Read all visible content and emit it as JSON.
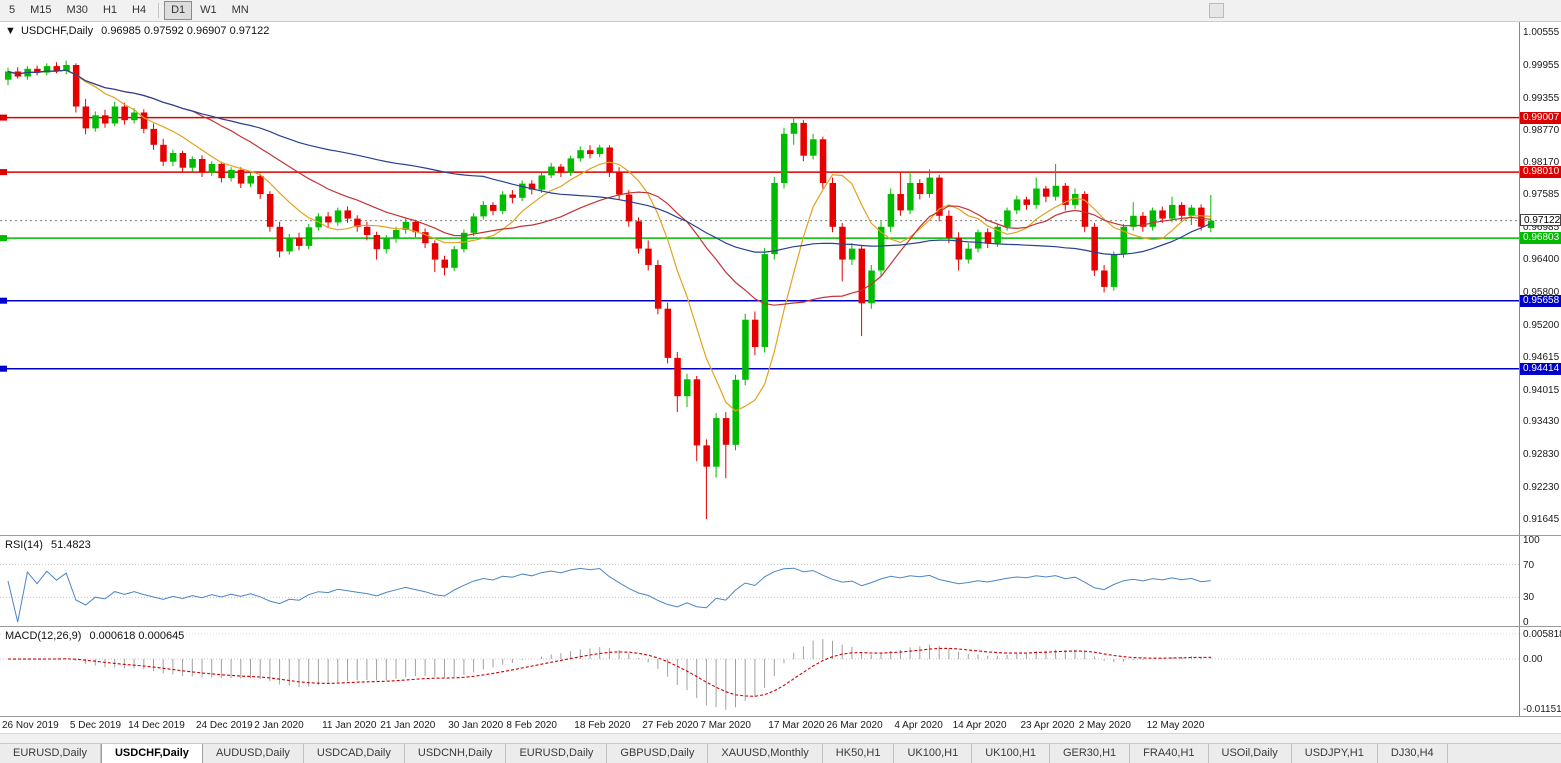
{
  "toolbar": {
    "timeframes": [
      "5",
      "M15",
      "M30",
      "H1",
      "H4",
      "|",
      "D1",
      "W1",
      "MN"
    ],
    "active": "D1"
  },
  "chart": {
    "collapse_icon": "▼",
    "title": "USDCHF,Daily",
    "ohlc_text": "0.96985 0.97592 0.96907 0.97122"
  },
  "chart_data": {
    "type": "candlestick",
    "symbol": "USDCHF",
    "timeframe": "Daily",
    "up_color": "#00bb00",
    "down_color": "#e60000",
    "price_axis": {
      "top_price": 1.00555,
      "bottom_price": 0.91645,
      "ticks": [
        1.00555,
        0.99955,
        0.99355,
        0.9877,
        0.9817,
        0.97585,
        0.96985,
        0.964,
        0.958,
        0.952,
        0.94615,
        0.94015,
        0.9343,
        0.9283,
        0.9223,
        0.91645
      ]
    },
    "hlines": [
      {
        "price": 0.99007,
        "label": "0.99007",
        "color": "#dd0000"
      },
      {
        "price": 0.9801,
        "label": "0.98010",
        "color": "#dd0000"
      },
      {
        "price": 0.96803,
        "label": "0.96803",
        "color": "#00bb00"
      },
      {
        "price": 0.95658,
        "label": "0.95658",
        "color": "#0000cc"
      },
      {
        "price": 0.94414,
        "label": "0.94414",
        "color": "#0000cc"
      }
    ],
    "current_price": {
      "price": 0.97122,
      "label": "0.97122"
    },
    "moving_averages": [
      {
        "period": 8,
        "color": "#e0a320"
      },
      {
        "period": 20,
        "color": "#c23434"
      },
      {
        "period": 50,
        "color": "#29418f"
      }
    ],
    "ohlc": [
      [
        0.997,
        0.9992,
        0.996,
        0.9985
      ],
      [
        0.9985,
        0.9993,
        0.9972,
        0.9976
      ],
      [
        0.9976,
        0.9995,
        0.997,
        0.999
      ],
      [
        0.999,
        0.9996,
        0.9978,
        0.9983
      ],
      [
        0.9983,
        1.0,
        0.9978,
        0.9995
      ],
      [
        0.9995,
        1.0002,
        0.9982,
        0.9986
      ],
      [
        0.9986,
        1.0005,
        0.998,
        0.9997
      ],
      [
        0.9997,
        1.0,
        0.991,
        0.9921
      ],
      [
        0.9921,
        0.9935,
        0.987,
        0.9881
      ],
      [
        0.9881,
        0.9912,
        0.9875,
        0.9905
      ],
      [
        0.9905,
        0.9915,
        0.9882,
        0.989
      ],
      [
        0.989,
        0.993,
        0.9885,
        0.9921
      ],
      [
        0.9921,
        0.9928,
        0.9888,
        0.9896
      ],
      [
        0.9896,
        0.9918,
        0.989,
        0.991
      ],
      [
        0.991,
        0.9916,
        0.9872,
        0.988
      ],
      [
        0.988,
        0.989,
        0.9842,
        0.9851
      ],
      [
        0.9851,
        0.9862,
        0.9812,
        0.982
      ],
      [
        0.982,
        0.9842,
        0.9812,
        0.9836
      ],
      [
        0.9836,
        0.984,
        0.98,
        0.9809
      ],
      [
        0.9809,
        0.983,
        0.9802,
        0.9825
      ],
      [
        0.9825,
        0.9832,
        0.9792,
        0.98
      ],
      [
        0.98,
        0.9821,
        0.9794,
        0.9816
      ],
      [
        0.9816,
        0.982,
        0.9782,
        0.979
      ],
      [
        0.979,
        0.981,
        0.9784,
        0.9805
      ],
      [
        0.9805,
        0.981,
        0.9772,
        0.978
      ],
      [
        0.978,
        0.98,
        0.9774,
        0.9794
      ],
      [
        0.9794,
        0.9798,
        0.9752,
        0.9761
      ],
      [
        0.9761,
        0.9766,
        0.9692,
        0.9701
      ],
      [
        0.9701,
        0.971,
        0.9645,
        0.9656
      ],
      [
        0.9656,
        0.9688,
        0.965,
        0.9681
      ],
      [
        0.9681,
        0.969,
        0.9658,
        0.9666
      ],
      [
        0.9666,
        0.9706,
        0.966,
        0.97
      ],
      [
        0.97,
        0.9726,
        0.9694,
        0.972
      ],
      [
        0.972,
        0.9728,
        0.97,
        0.9709
      ],
      [
        0.9709,
        0.9736,
        0.9703,
        0.9731
      ],
      [
        0.9731,
        0.9738,
        0.9708,
        0.9716
      ],
      [
        0.9716,
        0.9722,
        0.9692,
        0.9701
      ],
      [
        0.9701,
        0.971,
        0.9676,
        0.9686
      ],
      [
        0.9686,
        0.9692,
        0.9641,
        0.966
      ],
      [
        0.966,
        0.9686,
        0.9652,
        0.968
      ],
      [
        0.968,
        0.9701,
        0.9672,
        0.9695
      ],
      [
        0.9695,
        0.9716,
        0.9688,
        0.971
      ],
      [
        0.971,
        0.9714,
        0.9682,
        0.9691
      ],
      [
        0.9691,
        0.9698,
        0.9662,
        0.9671
      ],
      [
        0.9671,
        0.9676,
        0.9618,
        0.9641
      ],
      [
        0.9641,
        0.9648,
        0.9612,
        0.9626
      ],
      [
        0.9626,
        0.9666,
        0.962,
        0.966
      ],
      [
        0.966,
        0.9696,
        0.9654,
        0.969
      ],
      [
        0.969,
        0.9726,
        0.9684,
        0.972
      ],
      [
        0.972,
        0.9748,
        0.9714,
        0.9741
      ],
      [
        0.9741,
        0.9746,
        0.9722,
        0.973
      ],
      [
        0.973,
        0.9766,
        0.9724,
        0.976
      ],
      [
        0.976,
        0.9768,
        0.9744,
        0.9754
      ],
      [
        0.9754,
        0.9786,
        0.9748,
        0.978
      ],
      [
        0.978,
        0.9786,
        0.976,
        0.9769
      ],
      [
        0.9769,
        0.98,
        0.9763,
        0.9795
      ],
      [
        0.9795,
        0.9818,
        0.979,
        0.9811
      ],
      [
        0.9811,
        0.9816,
        0.9792,
        0.98
      ],
      [
        0.98,
        0.9831,
        0.9794,
        0.9826
      ],
      [
        0.9826,
        0.9848,
        0.982,
        0.9841
      ],
      [
        0.9841,
        0.985,
        0.9826,
        0.9834
      ],
      [
        0.9834,
        0.9851,
        0.9828,
        0.9846
      ],
      [
        0.9846,
        0.985,
        0.9792,
        0.9801
      ],
      [
        0.9801,
        0.981,
        0.9751,
        0.976
      ],
      [
        0.976,
        0.9768,
        0.9701,
        0.9711
      ],
      [
        0.9711,
        0.9718,
        0.9652,
        0.9661
      ],
      [
        0.9661,
        0.9676,
        0.9621,
        0.9631
      ],
      [
        0.9631,
        0.964,
        0.9541,
        0.9551
      ],
      [
        0.9551,
        0.9562,
        0.9451,
        0.9461
      ],
      [
        0.9461,
        0.9472,
        0.9362,
        0.9391
      ],
      [
        0.9391,
        0.9432,
        0.9371,
        0.9422
      ],
      [
        0.9422,
        0.9428,
        0.9272,
        0.9301
      ],
      [
        0.9301,
        0.9312,
        0.9166,
        0.9262
      ],
      [
        0.9262,
        0.936,
        0.9242,
        0.9351
      ],
      [
        0.9351,
        0.9362,
        0.9241,
        0.9302
      ],
      [
        0.9302,
        0.943,
        0.9292,
        0.9421
      ],
      [
        0.9421,
        0.9542,
        0.9411,
        0.9531
      ],
      [
        0.9531,
        0.9546,
        0.9466,
        0.9481
      ],
      [
        0.9481,
        0.9662,
        0.9471,
        0.9651
      ],
      [
        0.9651,
        0.9792,
        0.9641,
        0.9781
      ],
      [
        0.9781,
        0.9882,
        0.9771,
        0.9871
      ],
      [
        0.9871,
        0.9901,
        0.9851,
        0.9891
      ],
      [
        0.9891,
        0.9896,
        0.9821,
        0.9831
      ],
      [
        0.9831,
        0.9871,
        0.9824,
        0.9861
      ],
      [
        0.9861,
        0.9866,
        0.9771,
        0.9781
      ],
      [
        0.9781,
        0.9791,
        0.9691,
        0.9701
      ],
      [
        0.9701,
        0.9708,
        0.9601,
        0.9641
      ],
      [
        0.9641,
        0.9671,
        0.9631,
        0.9661
      ],
      [
        0.9661,
        0.9668,
        0.9501,
        0.9561
      ],
      [
        0.9561,
        0.9631,
        0.9551,
        0.9621
      ],
      [
        0.9621,
        0.9711,
        0.9611,
        0.9701
      ],
      [
        0.9701,
        0.9771,
        0.9691,
        0.9761
      ],
      [
        0.9761,
        0.9801,
        0.9721,
        0.9731
      ],
      [
        0.9731,
        0.9801,
        0.9724,
        0.9781
      ],
      [
        0.9781,
        0.9788,
        0.9751,
        0.9761
      ],
      [
        0.9761,
        0.9806,
        0.9754,
        0.9791
      ],
      [
        0.9791,
        0.9796,
        0.9711,
        0.9721
      ],
      [
        0.9721,
        0.9731,
        0.9671,
        0.9681
      ],
      [
        0.9681,
        0.9691,
        0.9621,
        0.9641
      ],
      [
        0.9641,
        0.9671,
        0.9634,
        0.9661
      ],
      [
        0.9661,
        0.9696,
        0.9654,
        0.9691
      ],
      [
        0.9691,
        0.9698,
        0.9662,
        0.9671
      ],
      [
        0.9671,
        0.9706,
        0.9664,
        0.9701
      ],
      [
        0.9701,
        0.9736,
        0.9694,
        0.9731
      ],
      [
        0.9731,
        0.9758,
        0.9724,
        0.9751
      ],
      [
        0.9751,
        0.9756,
        0.9732,
        0.9741
      ],
      [
        0.9741,
        0.9791,
        0.9734,
        0.9771
      ],
      [
        0.9771,
        0.9776,
        0.9746,
        0.9756
      ],
      [
        0.9756,
        0.9816,
        0.9749,
        0.9776
      ],
      [
        0.9776,
        0.9781,
        0.9731,
        0.9741
      ],
      [
        0.9741,
        0.9771,
        0.9734,
        0.9761
      ],
      [
        0.9761,
        0.9766,
        0.9691,
        0.9701
      ],
      [
        0.9701,
        0.9708,
        0.9611,
        0.9621
      ],
      [
        0.9621,
        0.9631,
        0.9581,
        0.9591
      ],
      [
        0.9591,
        0.9656,
        0.9584,
        0.9651
      ],
      [
        0.9651,
        0.9706,
        0.9644,
        0.9701
      ],
      [
        0.9701,
        0.9746,
        0.9694,
        0.9721
      ],
      [
        0.9721,
        0.9728,
        0.9692,
        0.9701
      ],
      [
        0.9701,
        0.9736,
        0.9694,
        0.9731
      ],
      [
        0.9731,
        0.9738,
        0.9708,
        0.9716
      ],
      [
        0.9716,
        0.9756,
        0.9709,
        0.9741
      ],
      [
        0.9741,
        0.9746,
        0.9712,
        0.9721
      ],
      [
        0.9721,
        0.9741,
        0.9704,
        0.9736
      ],
      [
        0.9736,
        0.9742,
        0.9694,
        0.9701
      ],
      [
        0.96985,
        0.97592,
        0.96907,
        0.97122
      ]
    ],
    "x_labels": [
      [
        0,
        "26 Nov 2019"
      ],
      [
        7,
        "5 Dec 2019"
      ],
      [
        13,
        "14 Dec 2019"
      ],
      [
        20,
        "24 Dec 2019"
      ],
      [
        26,
        "2 Jan 2020"
      ],
      [
        33,
        "11 Jan 2020"
      ],
      [
        39,
        "21 Jan 2020"
      ],
      [
        46,
        "30 Jan 2020"
      ],
      [
        52,
        "8 Feb 2020"
      ],
      [
        59,
        "18 Feb 2020"
      ],
      [
        66,
        "27 Feb 2020"
      ],
      [
        72,
        "7 Mar 2020"
      ],
      [
        79,
        "17 Mar 2020"
      ],
      [
        85,
        "26 Mar 2020"
      ],
      [
        92,
        "4 Apr 2020"
      ],
      [
        98,
        "14 Apr 2020"
      ],
      [
        105,
        "23 Apr 2020"
      ],
      [
        111,
        "2 May 2020"
      ],
      [
        118,
        "12 May 2020"
      ]
    ],
    "rsi": {
      "label": "RSI(14)",
      "value_text": "51.4823",
      "period": 14,
      "color": "#4c85c4",
      "levels": [
        100,
        70,
        30,
        0
      ]
    },
    "macd": {
      "label": "MACD(12,26,9)",
      "values_text": "0.000618 0.000645",
      "fast": 12,
      "slow": 26,
      "signal": 9,
      "hist_color": "#a0a0a0",
      "signal_color": "#cc0000",
      "levels": [
        {
          "v": 0.005818,
          "t": "0.005818"
        },
        {
          "v": 0,
          "t": "0.00"
        },
        {
          "v": -0.011514,
          "t": "-0.011514"
        }
      ]
    }
  },
  "tabs": [
    {
      "label": "EURUSD,Daily"
    },
    {
      "label": "USDCHF,Daily",
      "active": true
    },
    {
      "label": "AUDUSD,Daily"
    },
    {
      "label": "USDCAD,Daily"
    },
    {
      "label": "USDCNH,Daily"
    },
    {
      "label": "EURUSD,Daily"
    },
    {
      "label": "GBPUSD,Daily"
    },
    {
      "label": "XAUUSD,Monthly"
    },
    {
      "label": "HK50,H1"
    },
    {
      "label": "UK100,H1"
    },
    {
      "label": "UK100,H1"
    },
    {
      "label": "GER30,H1"
    },
    {
      "label": "FRA40,H1"
    },
    {
      "label": "USOil,Daily"
    },
    {
      "label": "USDJPY,H1"
    },
    {
      "label": "DJ30,H4"
    }
  ]
}
